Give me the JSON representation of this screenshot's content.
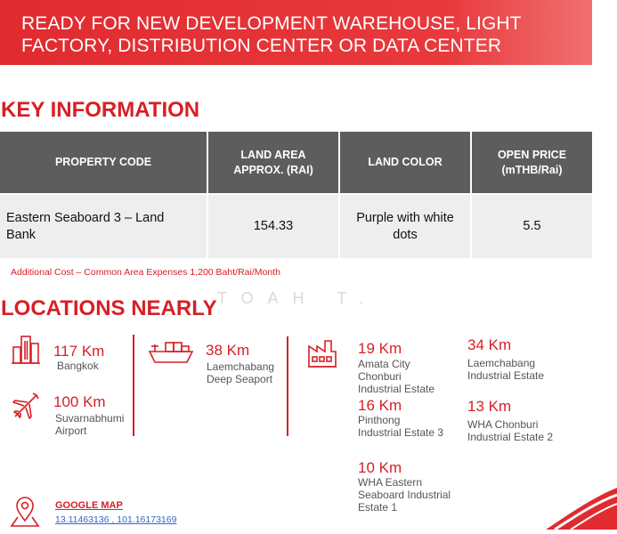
{
  "banner": {
    "line1": "READY FOR NEW DEVELOPMENT WAREHOUSE, LIGHT",
    "line2": "FACTORY, DISTRIBUTION CENTER OR DATA CENTER"
  },
  "key_info": {
    "title": "KEY INFORMATION",
    "headers": {
      "code": "PROPERTY CODE",
      "area_l1": "LAND AREA",
      "area_l2": "APPROX. (RAI)",
      "color": "LAND COLOR",
      "price_l1": "OPEN PRICE",
      "price_l2": "(mTHB/Rai)"
    },
    "row": {
      "code_l1": "Eastern Seaboard 3 – Land",
      "code_l2": "Bank",
      "area": "154.33",
      "color_l1": "Purple with white",
      "color_l2": "dots",
      "price": "5.5"
    },
    "note": "Additional Cost – Common Area Expenses 1,200 Baht/Rai/Month"
  },
  "watermark": "TOAH T.",
  "locations": {
    "title": "LOCATIONS NEARLY",
    "bangkok": {
      "distance": "117 Km",
      "name": "Bangkok"
    },
    "airport": {
      "distance": "100 Km",
      "name_l1": "Suvarnabhumi",
      "name_l2": "Airport"
    },
    "seaport": {
      "distance": "38 Km",
      "name_l1": "Laemchabang",
      "name_l2": "Deep Seaport"
    },
    "amata": {
      "distance": "19 Km",
      "name_l1": "Amata City",
      "name_l2": "Chonburi",
      "name_l3": "Industrial Estate"
    },
    "laem_ie": {
      "distance": "34 Km",
      "name_l1": "Laemchabang",
      "name_l2": "Industrial Estate"
    },
    "pinthong": {
      "distance": "16 Km",
      "name_l1": "Pinthong",
      "name_l2": "Industrial Estate 3"
    },
    "wha_chonburi": {
      "distance": "13 Km",
      "name_l1": "WHA Chonburi",
      "name_l2": "Industrial Estate 2"
    },
    "wha_eastern": {
      "distance": "10 Km",
      "name_l1": "WHA Eastern",
      "name_l2": "Seaboard Industrial",
      "name_l3": "Estate 1"
    }
  },
  "google_map": {
    "label": "GOOGLE MAP",
    "coords": "13.11463136 , 101.16173169"
  },
  "colors": {
    "accent": "#d71f26",
    "header_bg": "#5d5d5d",
    "cell_bg": "#eeeeee"
  }
}
